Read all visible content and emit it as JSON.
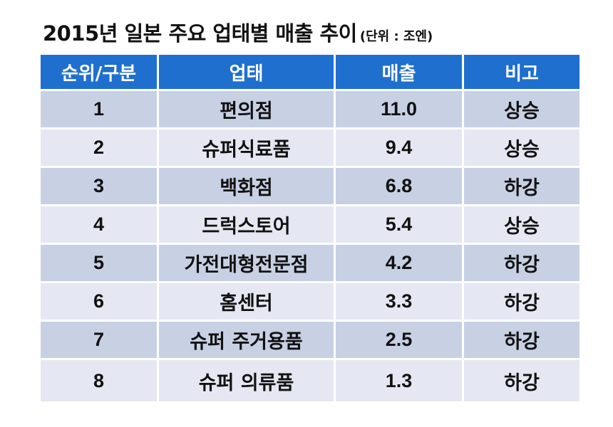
{
  "title": {
    "main": "2015년 일본 주요 업태별 매출 추이",
    "unit": "(단위 : 조엔)"
  },
  "table": {
    "headers": [
      "순위/구분",
      "업태",
      "매출",
      "비고"
    ],
    "rows": [
      {
        "rank": "1",
        "type": "편의점",
        "sales": "11.0",
        "note": "상승"
      },
      {
        "rank": "2",
        "type": "슈퍼식료품",
        "sales": "9.4",
        "note": "상승"
      },
      {
        "rank": "3",
        "type": "백화점",
        "sales": "6.8",
        "note": "하강"
      },
      {
        "rank": "4",
        "type": "드럭스토어",
        "sales": "5.4",
        "note": "상승"
      },
      {
        "rank": "5",
        "type": "가전대형전문점",
        "sales": "4.2",
        "note": "하강"
      },
      {
        "rank": "6",
        "type": "홈센터",
        "sales": "3.3",
        "note": "하강"
      },
      {
        "rank": "7",
        "type": "슈퍼 주거용품",
        "sales": "2.5",
        "note": "하강"
      },
      {
        "rank": "8",
        "type": "슈퍼 의류품",
        "sales": "1.3",
        "note": "하강"
      }
    ]
  },
  "colors": {
    "header_bg": "#1f6fcf",
    "row_odd_bg": "#c8d0e4",
    "row_even_bg": "#e5e8f2"
  }
}
